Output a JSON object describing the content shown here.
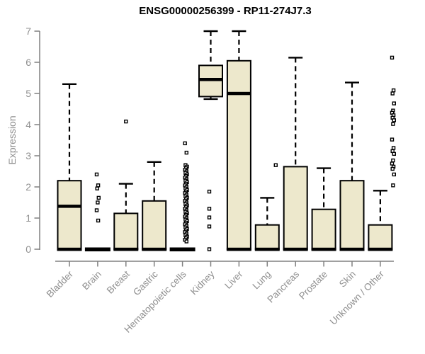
{
  "chart_data": {
    "type": "boxplot",
    "title": "ENSG00000256399 - RP11-274J7.3",
    "xlabel": "",
    "ylabel": "Expression",
    "ylim": [
      0,
      7
    ],
    "y_ticks": [
      0,
      1,
      2,
      3,
      4,
      5,
      6,
      7
    ],
    "grid": false,
    "legend": "none",
    "colors": {
      "box_fill": "#ede8cc",
      "box_stroke": "#000000",
      "axis_line": "#808080",
      "tick_label": "#8f8f8f",
      "title_color": "#000000",
      "background": "#ffffff"
    },
    "categories": [
      "Bladder",
      "Brain",
      "Breast",
      "Gastric",
      "Hematopoietic cells",
      "Kidney",
      "Liver",
      "Lung",
      "Pancreas",
      "Prostate",
      "Skin",
      "Unknown / Other"
    ],
    "series": [
      {
        "label": "Bladder",
        "whisker_low": 0,
        "q1": 0,
        "median": 1.38,
        "q3": 2.2,
        "whisker_high": 5.3,
        "outliers": [],
        "collapsed": false,
        "outlier_dx": 0
      },
      {
        "label": "Brain",
        "whisker_low": 0,
        "q1": 0,
        "median": 0,
        "q3": 0,
        "whisker_high": 0,
        "outliers": [
          2.4,
          2.05,
          1.95,
          1.65,
          1.5,
          1.25,
          0.92
        ],
        "collapsed": true,
        "outlier_dx": 0
      },
      {
        "label": "Breast",
        "whisker_low": 0,
        "q1": 0,
        "median": 0,
        "q3": 1.15,
        "whisker_high": 2.1,
        "outliers": [
          4.1
        ],
        "collapsed": false,
        "outlier_dx": 0
      },
      {
        "label": "Gastric",
        "whisker_low": 0,
        "q1": 0,
        "median": 0,
        "q3": 1.55,
        "whisker_high": 2.8,
        "outliers": [],
        "collapsed": false,
        "outlier_dx": 0
      },
      {
        "label": "Hematopoietic cells",
        "whisker_low": 0,
        "q1": 0,
        "median": 0,
        "q3": 0,
        "whisker_high": 0,
        "outliers": [
          3.4,
          3.1,
          2.7,
          2.65,
          2.6,
          2.55,
          2.5,
          2.45,
          2.4,
          2.35,
          2.3,
          2.25,
          2.2,
          2.15,
          2.1,
          2.05,
          2.0,
          1.95,
          1.9,
          1.85,
          1.8,
          1.75,
          1.7,
          1.65,
          1.6,
          1.55,
          1.5,
          1.45,
          1.4,
          1.35,
          1.3,
          1.25,
          1.2,
          1.15,
          1.1,
          1.05,
          1.0,
          0.95,
          0.9,
          0.85,
          0.8,
          0.75,
          0.7,
          0.65,
          0.6,
          0.55,
          0.5,
          0.45,
          0.4,
          0.35,
          0.3,
          0.25
        ],
        "collapsed": true,
        "outlier_dx": 5
      },
      {
        "label": "Kidney",
        "whisker_low": 4.82,
        "q1": 4.9,
        "median": 5.45,
        "q3": 5.9,
        "whisker_high": 7.0,
        "outliers": [
          1.85,
          1.3,
          1.02,
          0.73,
          0
        ],
        "collapsed": false,
        "outlier_dx": -2
      },
      {
        "label": "Liver",
        "whisker_low": 0,
        "q1": 0,
        "median": 5.0,
        "q3": 6.05,
        "whisker_high": 7.0,
        "outliers": [],
        "collapsed": false,
        "outlier_dx": 0
      },
      {
        "label": "Lung",
        "whisker_low": 0,
        "q1": 0,
        "median": 0,
        "q3": 0.78,
        "whisker_high": 1.65,
        "outliers": [
          2.7
        ],
        "collapsed": false,
        "outlier_dx": 12
      },
      {
        "label": "Pancreas",
        "whisker_low": 0,
        "q1": 0,
        "median": 0,
        "q3": 2.65,
        "whisker_high": 6.15,
        "outliers": [],
        "collapsed": false,
        "outlier_dx": 0
      },
      {
        "label": "Prostate",
        "whisker_low": 0,
        "q1": 0,
        "median": 0,
        "q3": 1.28,
        "whisker_high": 2.6,
        "outliers": [],
        "collapsed": false,
        "outlier_dx": 0
      },
      {
        "label": "Skin",
        "whisker_low": 0,
        "q1": 0,
        "median": 0,
        "q3": 2.2,
        "whisker_high": 5.35,
        "outliers": [],
        "collapsed": false,
        "outlier_dx": 0
      },
      {
        "label": "Unknown / Other",
        "whisker_low": 0,
        "q1": 0,
        "median": 0,
        "q3": 0.78,
        "whisker_high": 1.88,
        "outliers": [
          6.15,
          5.1,
          5.0,
          4.68,
          4.45,
          4.38,
          4.3,
          4.22,
          4.14,
          4.02,
          3.52,
          3.25,
          3.15,
          3.06,
          2.85,
          2.75,
          2.65,
          2.58,
          2.4,
          2.05
        ],
        "collapsed": false,
        "outlier_dx": 18
      }
    ]
  }
}
